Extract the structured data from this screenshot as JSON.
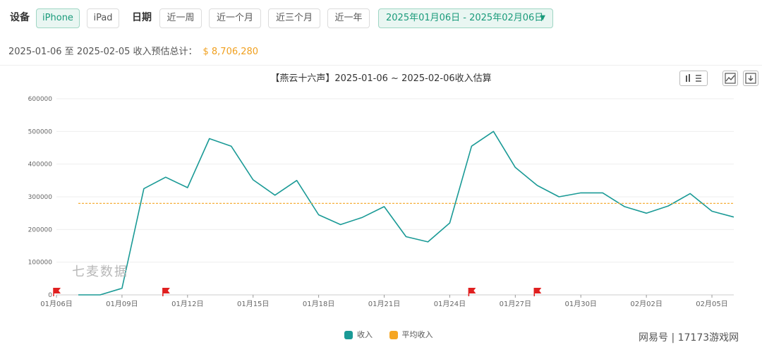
{
  "toolbar": {
    "device_label": "设备",
    "device_iphone": "iPhone",
    "device_ipad": "iPad",
    "date_label": "日期",
    "range_week": "近一周",
    "range_month": "近一个月",
    "range_3months": "近三个月",
    "range_year": "近一年",
    "date_range": "2025年01月06日 - 2025年02月06日"
  },
  "summary": {
    "text": "2025-01-06 至 2025-02-05 收入预估总计：",
    "total": "$ 8,706,280"
  },
  "icons": {
    "bar_chart": "bar-chart-icon",
    "line_chart": "line-chart-icon",
    "download": "download-icon"
  },
  "watermark": "七麦数据",
  "credit": "网易号 | 17173游戏网",
  "colors": {
    "revenue": "#1a9a96",
    "average": "#f5a623",
    "flag": "#e02020"
  },
  "chart_data": {
    "type": "line",
    "title": "【燕云十六声】2025-01-06 ~ 2025-02-06收入估算",
    "x": [
      "01月06日",
      "01月07日",
      "01月08日",
      "01月09日",
      "01月10日",
      "01月11日",
      "01月12日",
      "01月13日",
      "01月14日",
      "01月15日",
      "01月16日",
      "01月17日",
      "01月18日",
      "01月19日",
      "01月20日",
      "01月21日",
      "01月22日",
      "01月23日",
      "01月24日",
      "01月25日",
      "01月26日",
      "01月27日",
      "01月28日",
      "01月29日",
      "01月30日",
      "01月31日",
      "02月01日",
      "02月02日",
      "02月03日",
      "02月04日",
      "02月05日",
      "02月06日"
    ],
    "x_tick_labels": [
      "01月06日",
      "01月09日",
      "01月12日",
      "01月15日",
      "01月18日",
      "01月21日",
      "01月24日",
      "01月27日",
      "01月30日",
      "02月02日",
      "02月05日"
    ],
    "series": [
      {
        "name": "收入",
        "values": [
          null,
          0,
          0,
          20000,
          325000,
          360000,
          328000,
          478000,
          455000,
          352000,
          305000,
          350000,
          245000,
          215000,
          237000,
          270000,
          178000,
          162000,
          220000,
          455000,
          500000,
          390000,
          335000,
          300000,
          312000,
          312000,
          270000,
          250000,
          272000,
          310000,
          256000,
          238000
        ]
      },
      {
        "name": "平均收入",
        "values": [
          null,
          280000,
          280000,
          280000,
          280000,
          280000,
          280000,
          280000,
          280000,
          280000,
          280000,
          280000,
          280000,
          280000,
          280000,
          280000,
          280000,
          280000,
          280000,
          280000,
          280000,
          280000,
          280000,
          280000,
          280000,
          280000,
          280000,
          280000,
          280000,
          280000,
          280000,
          280000
        ]
      }
    ],
    "event_flags": [
      "01月06日",
      "01月11日",
      "01月25日",
      "01月28日"
    ],
    "y_ticks": [
      "0",
      "100000",
      "200000",
      "300000",
      "400000",
      "500000",
      "600000"
    ],
    "ylim": [
      0,
      600000
    ],
    "grid": true,
    "legend_position": "bottom"
  }
}
